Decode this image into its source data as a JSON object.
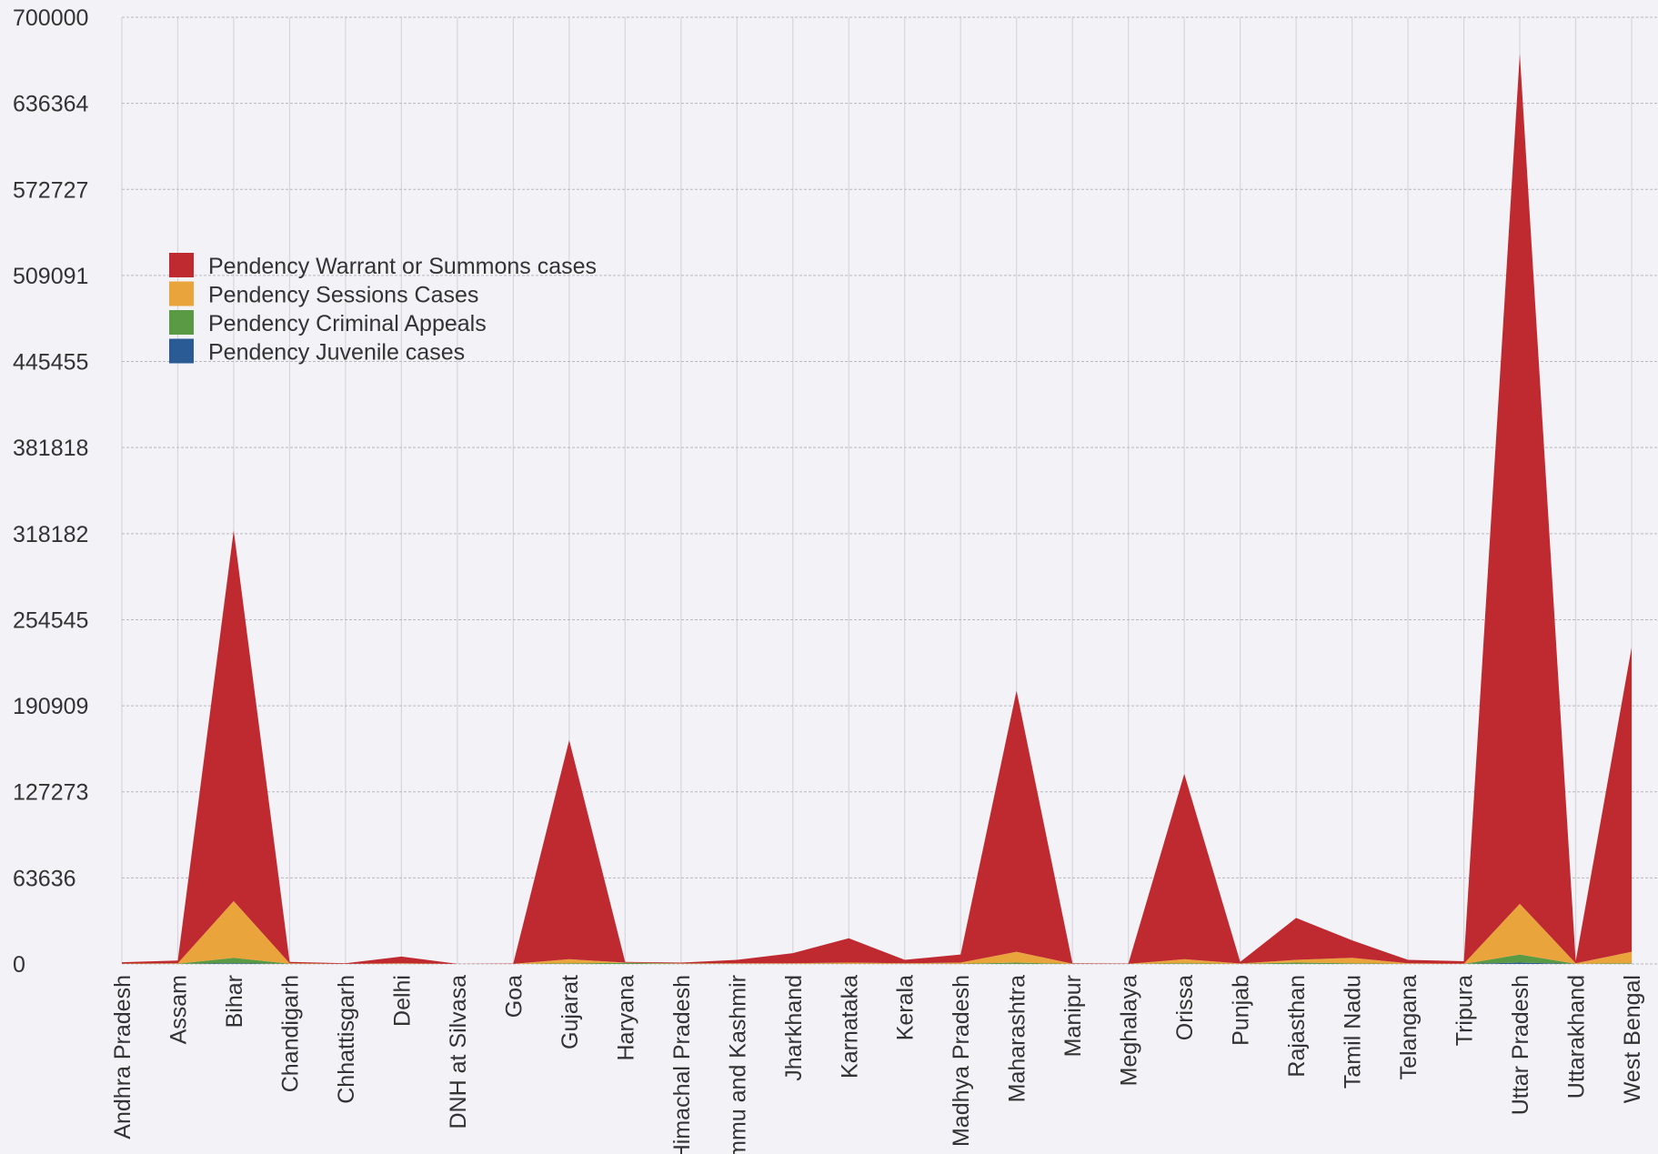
{
  "chart_data": {
    "type": "stacked-area",
    "categories": [
      "Andhra Pradesh",
      "Assam",
      "Bihar",
      "Chandigarh",
      "Chhattisgarh",
      "Delhi",
      "DNH at Silvasa",
      "Goa",
      "Gujarat",
      "Haryana",
      "Himachal Pradesh",
      "Jammu and Kashmir",
      "Jharkhand",
      "Karnataka",
      "Kerala",
      "Madhya Pradesh",
      "Maharashtra",
      "Manipur",
      "Meghalaya",
      "Orissa",
      "Punjab",
      "Rajasthan",
      "Tamil Nadu",
      "Telangana",
      "Tripura",
      "Uttar Pradesh",
      "Uttarakhand",
      "West Bengal"
    ],
    "series": [
      {
        "name": "Pendency Warrant or Summons cases",
        "color": "#bf2a30",
        "values": [
          1000,
          2000,
          274000,
          1000,
          400,
          5000,
          100,
          200,
          162000,
          500,
          600,
          2500,
          7500,
          18000,
          2500,
          6000,
          193000,
          300,
          200,
          137000,
          1200,
          31000,
          13000,
          2500,
          1800,
          628500,
          1500,
          225000
        ]
      },
      {
        "name": "Pendency Sessions Cases",
        "color": "#e9a43c",
        "values": [
          200,
          300,
          42000,
          300,
          100,
          400,
          0,
          100,
          3000,
          200,
          200,
          400,
          400,
          800,
          400,
          800,
          8000,
          100,
          100,
          3000,
          200,
          2000,
          4000,
          400,
          200,
          37500,
          400,
          8500
        ]
      },
      {
        "name": "Pendency Criminal Appeals",
        "color": "#5a9a44",
        "values": [
          50,
          200,
          4000,
          200,
          0,
          100,
          0,
          0,
          500,
          800,
          200,
          100,
          100,
          200,
          100,
          200,
          1000,
          100,
          0,
          500,
          100,
          1000,
          500,
          100,
          0,
          6000,
          100,
          500
        ]
      },
      {
        "name": "Pendency Juvenile cases",
        "color": "#2b5b94",
        "values": [
          0,
          0,
          500,
          0,
          0,
          0,
          0,
          0,
          0,
          0,
          0,
          0,
          0,
          0,
          0,
          0,
          0,
          0,
          0,
          0,
          0,
          0,
          0,
          0,
          0,
          1000,
          0,
          0
        ]
      }
    ],
    "ylim": [
      0,
      700000
    ],
    "yticks": [
      0,
      63636,
      127273,
      190909,
      254545,
      318182,
      381818,
      445455,
      509091,
      572727,
      636364,
      700000
    ],
    "grid": true,
    "legend": "upper-left"
  }
}
